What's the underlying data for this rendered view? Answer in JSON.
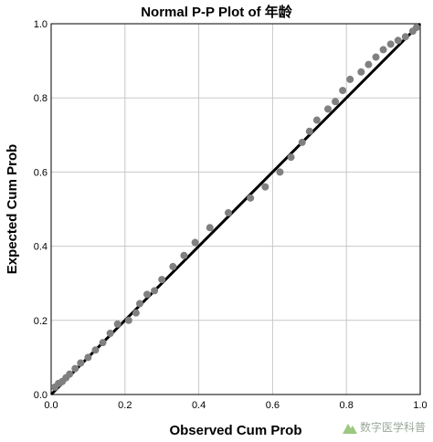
{
  "chart_data": {
    "type": "scatter",
    "title": "Normal P-P Plot of 年龄",
    "xlabel": "Observed Cum Prob",
    "ylabel": "Expected Cum Prob",
    "xlim": [
      0,
      1
    ],
    "ylim": [
      0,
      1
    ],
    "xticks": [
      "0.0",
      "0.2",
      "0.4",
      "0.6",
      "0.8",
      "1.0"
    ],
    "yticks": [
      "0.0",
      "0.2",
      "0.4",
      "0.6",
      "0.8",
      "1.0"
    ],
    "grid": true,
    "reference_line": [
      [
        0,
        0
      ],
      [
        1,
        1
      ]
    ],
    "point_color": "#808080",
    "line_color": "#000000",
    "points": [
      [
        0.01,
        0.02
      ],
      [
        0.02,
        0.03
      ],
      [
        0.03,
        0.035
      ],
      [
        0.04,
        0.045
      ],
      [
        0.05,
        0.055
      ],
      [
        0.065,
        0.07
      ],
      [
        0.08,
        0.085
      ],
      [
        0.1,
        0.1
      ],
      [
        0.12,
        0.12
      ],
      [
        0.14,
        0.14
      ],
      [
        0.16,
        0.165
      ],
      [
        0.18,
        0.19
      ],
      [
        0.21,
        0.2
      ],
      [
        0.23,
        0.22
      ],
      [
        0.24,
        0.245
      ],
      [
        0.26,
        0.27
      ],
      [
        0.28,
        0.28
      ],
      [
        0.3,
        0.31
      ],
      [
        0.33,
        0.345
      ],
      [
        0.36,
        0.375
      ],
      [
        0.39,
        0.41
      ],
      [
        0.43,
        0.45
      ],
      [
        0.48,
        0.49
      ],
      [
        0.54,
        0.53
      ],
      [
        0.58,
        0.56
      ],
      [
        0.62,
        0.6
      ],
      [
        0.65,
        0.64
      ],
      [
        0.68,
        0.68
      ],
      [
        0.7,
        0.71
      ],
      [
        0.72,
        0.74
      ],
      [
        0.75,
        0.77
      ],
      [
        0.77,
        0.79
      ],
      [
        0.79,
        0.82
      ],
      [
        0.81,
        0.85
      ],
      [
        0.84,
        0.87
      ],
      [
        0.86,
        0.89
      ],
      [
        0.88,
        0.91
      ],
      [
        0.9,
        0.93
      ],
      [
        0.92,
        0.945
      ],
      [
        0.94,
        0.955
      ],
      [
        0.96,
        0.965
      ],
      [
        0.98,
        0.98
      ],
      [
        0.99,
        0.99
      ]
    ]
  },
  "watermark": {
    "text": "数字医学科普"
  }
}
